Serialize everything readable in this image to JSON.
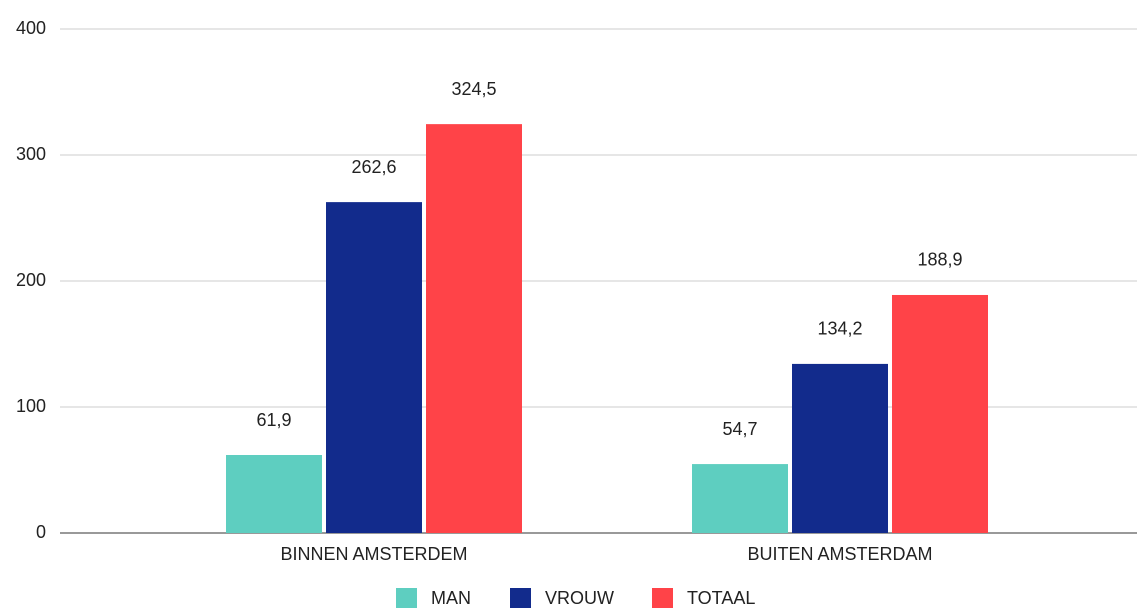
{
  "chart_data": {
    "type": "bar",
    "categories": [
      "BINNEN AMSTERDEM",
      "BUITEN AMSTERDAM"
    ],
    "series": [
      {
        "name": "MAN",
        "color": "#5ecec0",
        "values": [
          61.9,
          54.7
        ],
        "value_labels": [
          "61,9",
          "54,7"
        ]
      },
      {
        "name": "VROUW",
        "color": "#122b8c",
        "values": [
          262.6,
          134.2
        ],
        "value_labels": [
          "262,6",
          "134,2"
        ]
      },
      {
        "name": "TOTAAL",
        "color": "#ff4348",
        "values": [
          324.5,
          188.9
        ],
        "value_labels": [
          "324,5",
          "188,9"
        ]
      }
    ],
    "ylim": [
      0,
      400
    ],
    "yticks": [
      0,
      100,
      200,
      300,
      400
    ],
    "grid": true,
    "legend": "bottom"
  }
}
